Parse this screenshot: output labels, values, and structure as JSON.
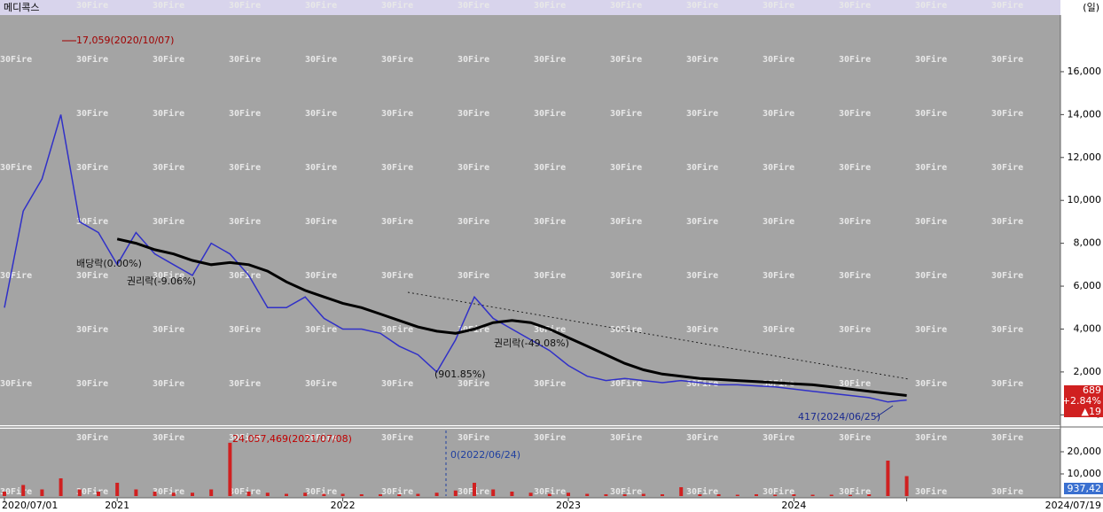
{
  "header": {
    "title": "메디콕스",
    "period": "(일)"
  },
  "watermark": "30Fire",
  "chart_data": [
    {
      "type": "line",
      "categories": [
        "2020-07",
        "2020-08",
        "2020-09",
        "2020-10",
        "2020-11",
        "2020-12",
        "2021-01",
        "2021-02",
        "2021-03",
        "2021-04",
        "2021-05",
        "2021-06",
        "2021-07",
        "2021-08",
        "2021-09",
        "2021-10",
        "2021-11",
        "2021-12",
        "2022-01",
        "2022-02",
        "2022-03",
        "2022-04",
        "2022-05",
        "2022-06",
        "2022-07",
        "2022-08",
        "2022-09",
        "2022-10",
        "2022-11",
        "2022-12",
        "2023-01",
        "2023-02",
        "2023-03",
        "2023-04",
        "2023-05",
        "2023-06",
        "2023-07",
        "2023-08",
        "2023-09",
        "2023-10",
        "2023-11",
        "2023-12",
        "2024-01",
        "2024-02",
        "2024-03",
        "2024-04",
        "2024-05",
        "2024-06",
        "2024-07"
      ],
      "series": [
        {
          "name": "종가",
          "color": "#3030c8",
          "values": [
            5000,
            9500,
            11000,
            14000,
            9000,
            8500,
            7000,
            8500,
            7500,
            7000,
            6500,
            8000,
            7500,
            6500,
            5000,
            5000,
            5500,
            4500,
            4000,
            4000,
            3800,
            3200,
            2800,
            2000,
            3500,
            5500,
            4500,
            4000,
            3500,
            3000,
            2300,
            1800,
            1600,
            1700,
            1600,
            1500,
            1600,
            1500,
            1400,
            1400,
            1350,
            1300,
            1200,
            1100,
            1000,
            900,
            800,
            600,
            689
          ]
        },
        {
          "name": "이동평균",
          "color": "#000000",
          "values": [
            null,
            null,
            null,
            null,
            null,
            null,
            8200,
            8000,
            7700,
            7500,
            7200,
            7000,
            7100,
            7000,
            6700,
            6200,
            5800,
            5500,
            5200,
            5000,
            4700,
            4400,
            4100,
            3900,
            3800,
            4000,
            4300,
            4400,
            4300,
            4000,
            3600,
            3200,
            2800,
            2400,
            2100,
            1900,
            1800,
            1700,
            1650,
            1600,
            1550,
            1500,
            1450,
            1400,
            1300,
            1200,
            1100,
            1000,
            900
          ]
        }
      ],
      "ylim": [
        -400,
        18600
      ],
      "yticks": [
        0,
        {
          "value": 2000,
          "label": "2,000"
        },
        {
          "value": 4000,
          "label": "4,000"
        },
        {
          "value": 6000,
          "label": "6,000"
        },
        {
          "value": 8000,
          "label": "8,000"
        },
        {
          "value": 10000,
          "label": "10,000"
        },
        {
          "value": 12000,
          "label": "12,000"
        },
        {
          "value": 14000,
          "label": "14,000"
        },
        {
          "value": 16000,
          "label": "16,000"
        }
      ],
      "annotations": [
        "17,059(2020/10/07)",
        "배당락(0.00%)",
        "권리락(-9.06%)",
        "(901.85%)",
        "권리락(-49.08%)",
        "417(2024/06/25)"
      ],
      "quote": {
        "price": "689",
        "change_pct": "+2.84%",
        "change": "▲19"
      }
    },
    {
      "type": "bar",
      "color": "#d02020",
      "values": [
        2000,
        5000,
        3000,
        8000,
        3000,
        2000,
        6000,
        3000,
        2000,
        1500,
        1500,
        3000,
        24057,
        2000,
        1500,
        1000,
        1500,
        1000,
        1000,
        800,
        800,
        800,
        1000,
        1500,
        2500,
        6000,
        3000,
        2000,
        1500,
        1000,
        1500,
        1000,
        800,
        800,
        1000,
        800,
        4000,
        800,
        800,
        600,
        800,
        600,
        800,
        600,
        600,
        500,
        800,
        16000,
        9000
      ],
      "ylim": [
        0,
        28800
      ],
      "yticks": [
        {
          "value": 10000,
          "label": "10,000"
        },
        {
          "value": 20000,
          "label": "20,000"
        }
      ],
      "xticks": [
        {
          "value": "2020-07",
          "label": "2020/07/01"
        },
        {
          "value": "2021-01",
          "label": "2021"
        },
        {
          "value": "2022-01",
          "label": "2022"
        },
        {
          "value": "2023-01",
          "label": "2023"
        },
        {
          "value": "2024-01",
          "label": "2024"
        },
        {
          "value": "2024-07",
          "label": "2024/07/19"
        }
      ],
      "annotations": [
        "24,057,469(2021/07/08)",
        "0(2022/06/24)"
      ],
      "last_label": "937,42"
    }
  ]
}
